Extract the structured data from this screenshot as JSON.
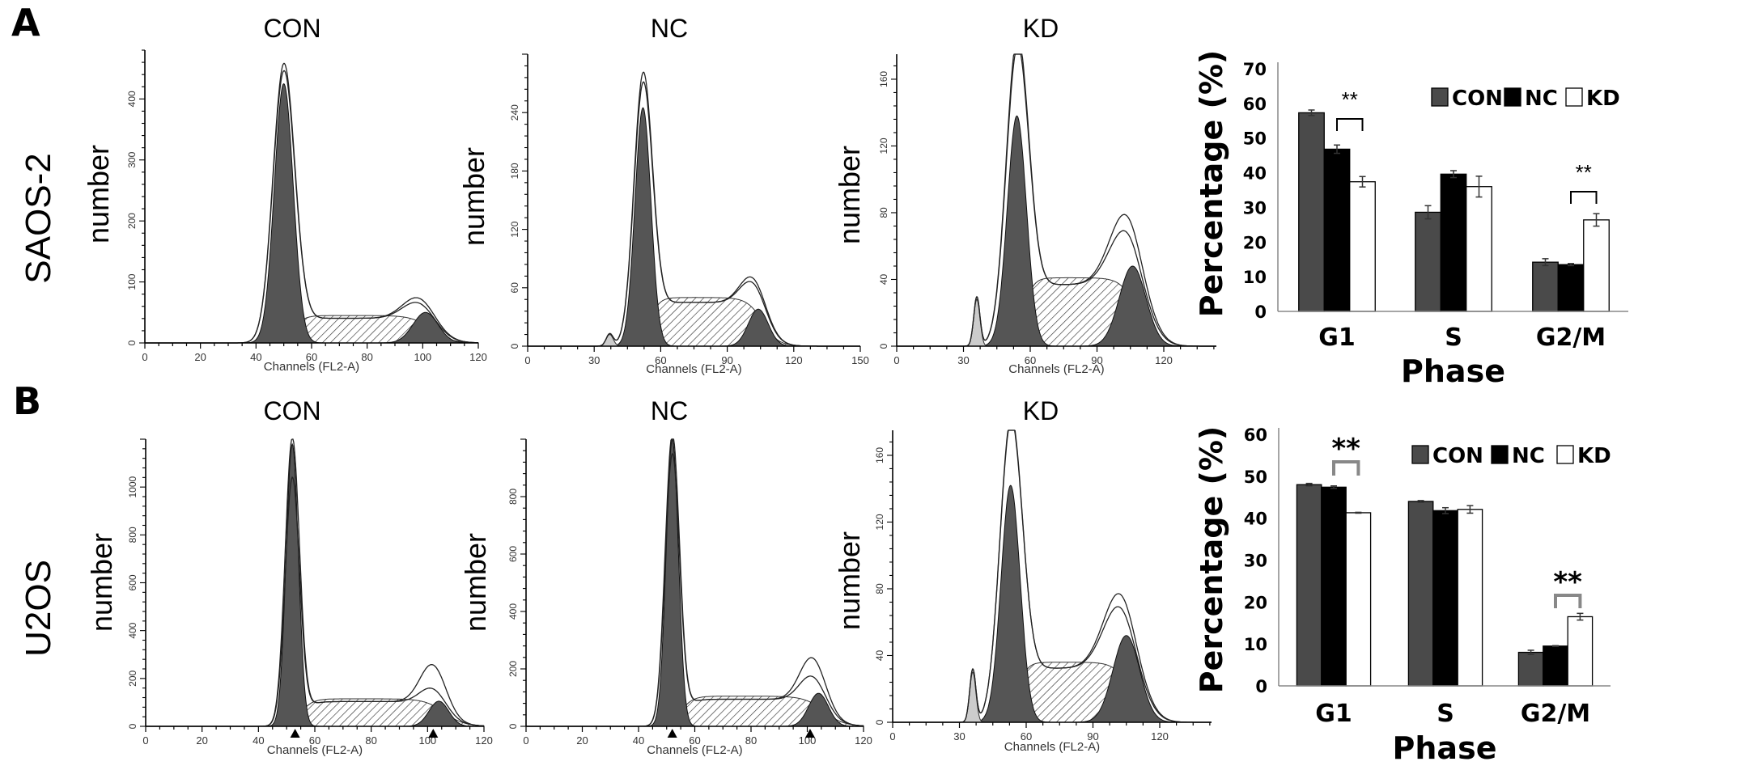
{
  "figure": {
    "panel_labels": [
      "A",
      "B"
    ],
    "row_labels": [
      "SAOS-2",
      "U2OS"
    ]
  },
  "chart_data": [
    {
      "type": "area",
      "panel": "A",
      "cell_line": "SAOS-2",
      "title": "CON",
      "xlabel": "Channels (FL2-A)",
      "ylabel": "number",
      "xlim": [
        0,
        120
      ],
      "ylim": [
        0,
        480
      ],
      "xticks": [
        0,
        20,
        40,
        60,
        80,
        100,
        120
      ],
      "yticks": [
        0,
        100,
        200,
        300,
        400
      ],
      "g1": {
        "mean": 50,
        "sd": 3.4,
        "height": 425
      },
      "s_phase_height": 45,
      "g2": {
        "mean": 101,
        "sd": 4.5,
        "height": 50
      },
      "total_peaks": [
        450,
        438
      ],
      "total_g2_peaks": [
        78,
        70
      ],
      "debris": null,
      "markers": []
    },
    {
      "type": "area",
      "panel": "A",
      "cell_line": "SAOS-2",
      "title": "NC",
      "xlabel": "Channels (FL2-A)",
      "ylabel": "number",
      "xlim": [
        0,
        150
      ],
      "ylim": [
        0,
        300
      ],
      "xticks": [
        0,
        30,
        60,
        90,
        120,
        150
      ],
      "yticks": [
        0,
        60,
        120,
        180,
        240
      ],
      "g1": {
        "mean": 52,
        "sd": 3.6,
        "height": 245
      },
      "s_phase_height": 50,
      "g2": {
        "mean": 104,
        "sd": 4.5,
        "height": 38
      },
      "total_peaks": [
        272,
        262
      ],
      "total_g2_peaks": [
        75,
        70
      ],
      "debris": {
        "mean": 37,
        "sd": 1.6,
        "height": 12
      },
      "markers": []
    },
    {
      "type": "area",
      "panel": "A",
      "cell_line": "SAOS-2",
      "title": "KD",
      "xlabel": "Channels (FL2-A)",
      "ylabel": "number",
      "xlim": [
        0,
        143
      ],
      "ylim": [
        0,
        175
      ],
      "xticks": [
        0,
        30,
        60,
        90,
        120
      ],
      "yticks": [
        0,
        40,
        80,
        120,
        160
      ],
      "g1": {
        "mean": 54,
        "sd": 4.3,
        "height": 138
      },
      "s_phase_height": 41,
      "g2": {
        "mean": 106,
        "sd": 6,
        "height": 48
      },
      "total_peaks": [
        178,
        172
      ],
      "total_g2_peaks": [
        82,
        72
      ],
      "debris": {
        "mean": 36,
        "sd": 1.4,
        "height": 28
      },
      "markers": []
    },
    {
      "type": "area",
      "panel": "B",
      "cell_line": "U2OS",
      "title": "CON",
      "xlabel": "Channels (FL2-A)",
      "ylabel": "number",
      "xlim": [
        0,
        120
      ],
      "ylim": [
        0,
        1200
      ],
      "xticks": [
        0,
        20,
        40,
        60,
        80,
        100,
        120
      ],
      "yticks": [
        0,
        200,
        400,
        600,
        800,
        1000
      ],
      "g1": {
        "mean": 52,
        "sd": 2.2,
        "height": 1180
      },
      "s_phase_height": 115,
      "g2": {
        "mean": 104,
        "sd": 3.5,
        "height": 105
      },
      "total_peaks": [
        1185,
        1020
      ],
      "total_g2_peaks": [
        270,
        170
      ],
      "debris": null,
      "markers": [
        53,
        102
      ]
    },
    {
      "type": "area",
      "panel": "B",
      "cell_line": "U2OS",
      "title": "NC",
      "xlabel": "Channels (FL2-A)",
      "ylabel": "number",
      "xlim": [
        0,
        120
      ],
      "ylim": [
        0,
        1000
      ],
      "xticks": [
        0,
        20,
        40,
        60,
        80,
        100,
        120
      ],
      "yticks": [
        0,
        200,
        400,
        600,
        800
      ],
      "g1": {
        "mean": 52,
        "sd": 2.2,
        "height": 1000
      },
      "s_phase_height": 105,
      "g2": {
        "mean": 104,
        "sd": 3.5,
        "height": 115
      },
      "total_peaks": [
        1000,
        930
      ],
      "total_g2_peaks": [
        250,
        185
      ],
      "debris": null,
      "markers": [
        52,
        101
      ]
    },
    {
      "type": "area",
      "panel": "B",
      "cell_line": "U2OS",
      "title": "KD",
      "xlabel": "Channels (FL2-A)",
      "ylabel": "number",
      "xlim": [
        0,
        143
      ],
      "ylim": [
        0,
        175
      ],
      "xticks": [
        0,
        30,
        60,
        90,
        120
      ],
      "yticks": [
        0,
        40,
        80,
        120,
        160
      ],
      "g1": {
        "mean": 53,
        "sd": 4.3,
        "height": 142
      },
      "s_phase_height": 36,
      "g2": {
        "mean": 105,
        "sd": 6,
        "height": 52
      },
      "total_peaks": [
        176,
        174
      ],
      "total_g2_peaks": [
        80,
        72
      ],
      "debris": {
        "mean": 36,
        "sd": 1.4,
        "height": 30
      },
      "markers": []
    },
    {
      "type": "bar",
      "panel": "A",
      "cell_line": "SAOS-2",
      "xlabel": "Phase",
      "ylabel": "Percentage (%)",
      "categories": [
        "G1",
        "S",
        "G2/M"
      ],
      "ylim": [
        0,
        70
      ],
      "yticks": [
        0,
        10,
        20,
        30,
        40,
        50,
        60,
        70
      ],
      "legend": "top-right",
      "series": [
        {
          "name": "CON",
          "color": "#4a4a4a",
          "values": [
            57.3,
            28.6,
            14.2
          ],
          "errors": [
            0.8,
            1.9,
            1.0
          ]
        },
        {
          "name": "NC",
          "color": "#000000",
          "values": [
            46.8,
            39.6,
            13.5
          ],
          "errors": [
            1.2,
            1.0,
            0.3
          ]
        },
        {
          "name": "KD",
          "color": "#ffffff",
          "values": [
            37.4,
            36.0,
            26.4
          ],
          "errors": [
            1.5,
            3.0,
            1.8
          ]
        }
      ],
      "significance": [
        {
          "category": "G1",
          "between": [
            "NC",
            "KD"
          ],
          "label": "**"
        },
        {
          "category": "G2/M",
          "between": [
            "NC",
            "KD"
          ],
          "label": "**"
        }
      ]
    },
    {
      "type": "bar",
      "panel": "B",
      "cell_line": "U2OS",
      "xlabel": "Phase",
      "ylabel": "Percentage (%)",
      "categories": [
        "G1",
        "S",
        "G2/M"
      ],
      "ylim": [
        0,
        60
      ],
      "yticks": [
        0,
        10,
        20,
        30,
        40,
        50,
        60
      ],
      "legend": "top-right",
      "series": [
        {
          "name": "CON",
          "color": "#4a4a4a",
          "values": [
            48.0,
            44.0,
            8.0
          ],
          "errors": [
            0.3,
            0.2,
            0.5
          ]
        },
        {
          "name": "NC",
          "color": "#000000",
          "values": [
            47.4,
            41.8,
            9.5
          ],
          "errors": [
            0.3,
            0.7,
            0.1
          ]
        },
        {
          "name": "KD",
          "color": "#ffffff",
          "values": [
            41.3,
            42.1,
            16.5
          ],
          "errors": [
            0.1,
            0.9,
            0.8
          ]
        }
      ],
      "significance": [
        {
          "category": "G1",
          "between": [
            "NC",
            "KD"
          ],
          "label": "**"
        },
        {
          "category": "G2/M",
          "between": [
            "NC",
            "KD"
          ],
          "label": "**"
        }
      ]
    }
  ]
}
